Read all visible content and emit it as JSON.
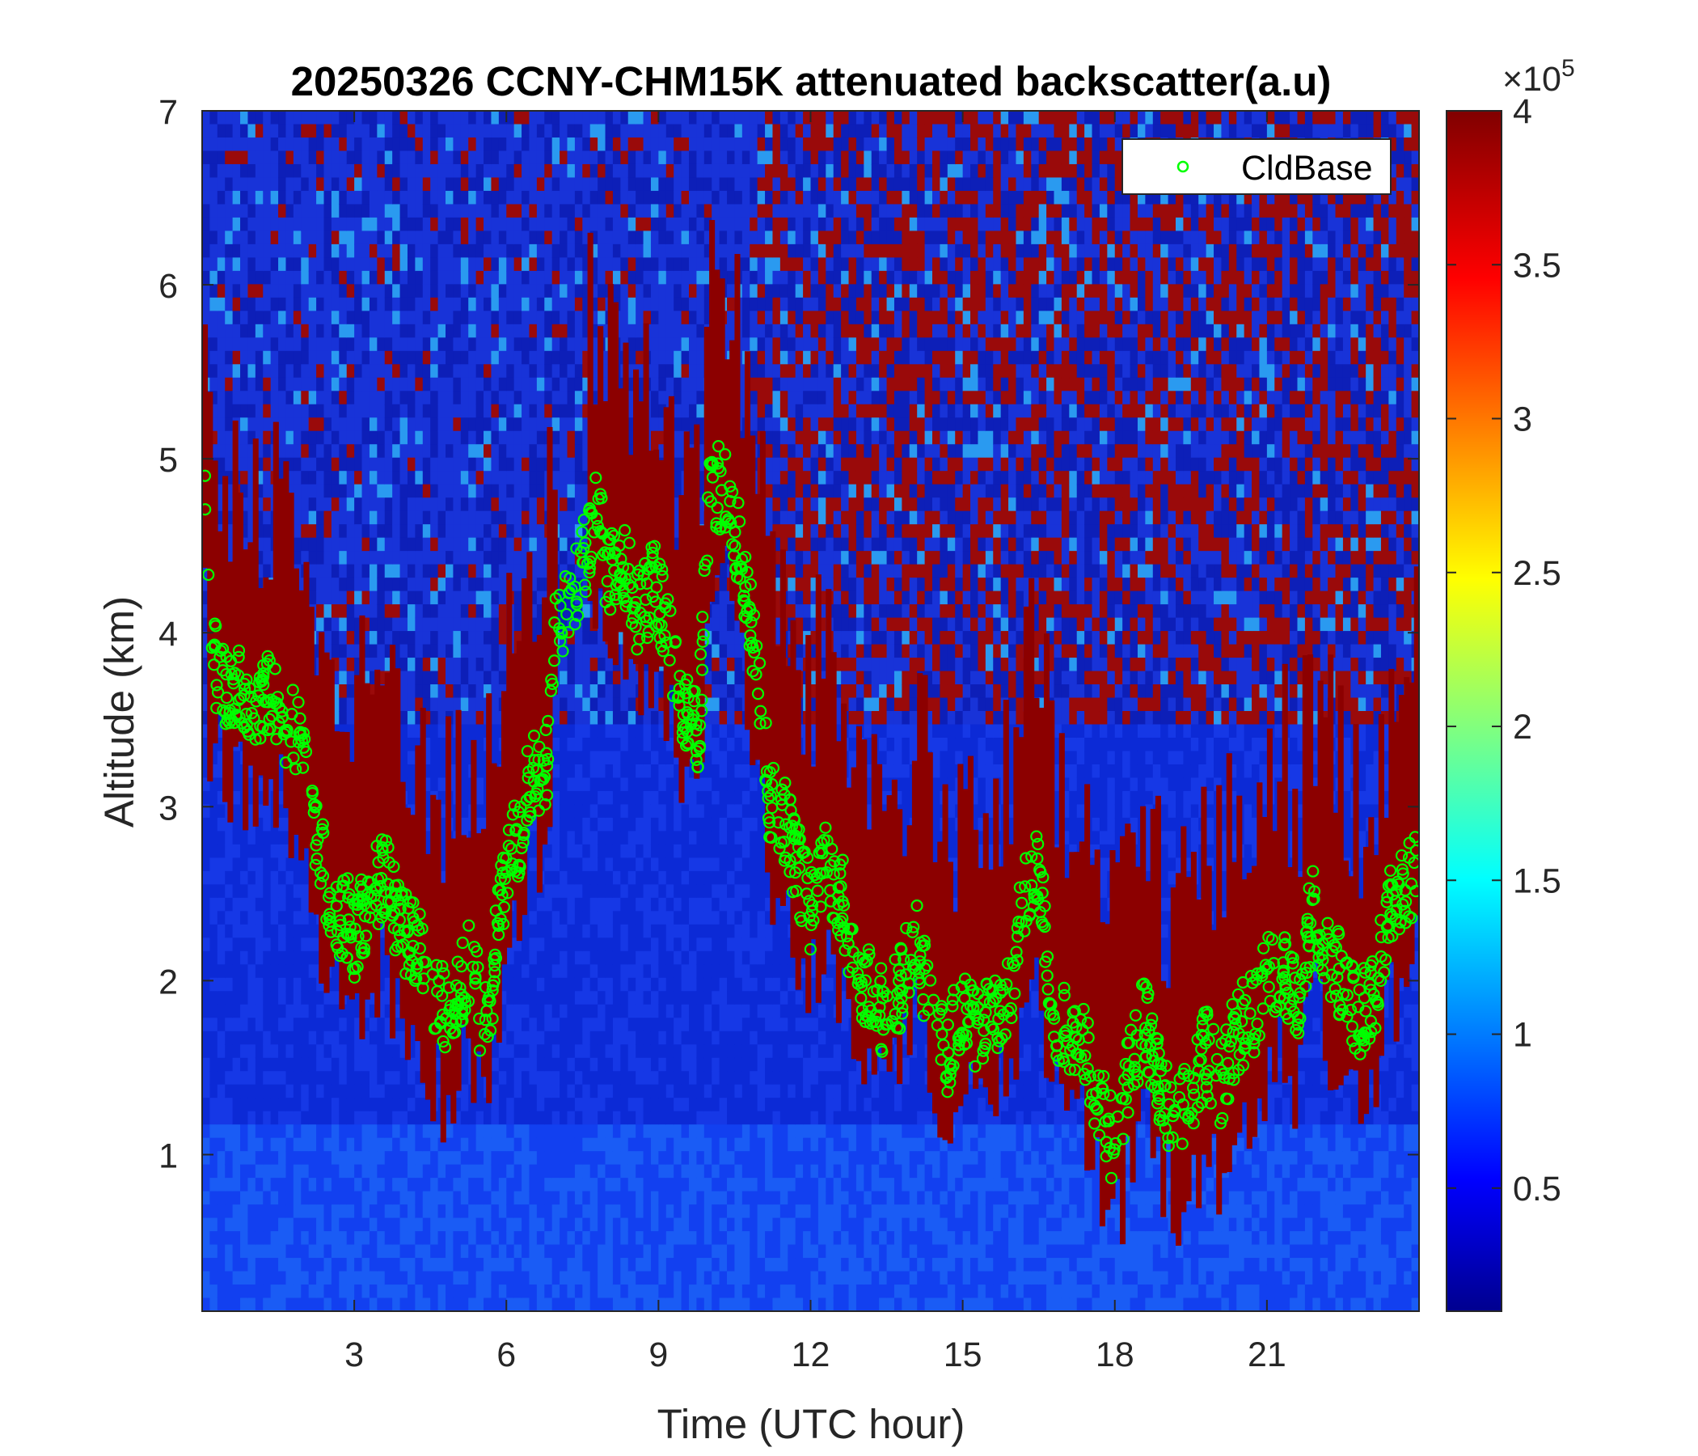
{
  "chart_data": {
    "type": "heatmap",
    "title": "20250326 CCNY-CHM15K attenuated backscatter(a.u)",
    "xlabel": "Time (UTC hour)",
    "ylabel": "Altitude (km)",
    "xlim": [
      0,
      24
    ],
    "ylim": [
      0.1,
      7
    ],
    "xticks": [
      3,
      6,
      9,
      12,
      15,
      18,
      21
    ],
    "yticks": [
      1,
      2,
      3,
      4,
      5,
      6,
      7
    ],
    "colorbar": {
      "colormap": "jet",
      "clim": [
        0.1,
        4
      ],
      "ticks": [
        0.5,
        1,
        1.5,
        2,
        2.5,
        3,
        3.5,
        4
      ],
      "exponent_label": "×10",
      "exponent_power": "5"
    },
    "legend": {
      "position": "top-right",
      "entries": [
        "CldBase"
      ],
      "marker": "circle",
      "color": "#00ff00"
    },
    "series": [
      {
        "name": "CldBase",
        "marker": "circle",
        "color": "#00ff00",
        "x": [
          0.05,
          0.15,
          0.3,
          0.5,
          0.8,
          1.0,
          1.3,
          1.6,
          1.9,
          2.1,
          2.3,
          2.5,
          2.7,
          2.9,
          3.0,
          3.3,
          3.6,
          3.9,
          4.2,
          4.5,
          4.8,
          5.0,
          5.3,
          5.5,
          5.7,
          5.9,
          6.1,
          6.3,
          6.5,
          6.8,
          7.0,
          7.2,
          7.5,
          7.8,
          8.0,
          8.3,
          8.6,
          8.9,
          9.2,
          9.5,
          9.8,
          10.0,
          10.3,
          10.6,
          10.9,
          11.2,
          11.5,
          11.8,
          12.0,
          12.3,
          12.6,
          12.9,
          13.2,
          13.5,
          13.8,
          14.1,
          14.4,
          14.7,
          15.0,
          15.3,
          15.6,
          15.9,
          16.2,
          16.5,
          16.8,
          17.1,
          17.4,
          17.7,
          18.0,
          18.3,
          18.6,
          18.9,
          19.2,
          19.5,
          19.8,
          20.1,
          20.4,
          20.7,
          21.0,
          21.3,
          21.6,
          21.9,
          22.2,
          22.5,
          22.8,
          23.1,
          23.4,
          23.7,
          23.95
        ],
        "y": [
          4.9,
          3.9,
          3.8,
          3.7,
          3.65,
          3.6,
          3.65,
          3.5,
          3.4,
          3.0,
          2.8,
          2.5,
          2.3,
          2.4,
          2.2,
          2.5,
          2.6,
          2.3,
          2.2,
          2.0,
          1.8,
          1.9,
          2.1,
          1.8,
          1.9,
          2.5,
          2.7,
          2.9,
          3.2,
          3.2,
          4.2,
          4.1,
          4.4,
          4.7,
          4.3,
          4.4,
          4.1,
          4.3,
          4.0,
          3.6,
          3.4,
          4.9,
          4.8,
          4.5,
          3.9,
          3.0,
          2.9,
          2.6,
          2.4,
          2.7,
          2.5,
          2.1,
          1.9,
          1.8,
          2.0,
          2.3,
          1.7,
          1.6,
          1.9,
          1.7,
          1.8,
          1.9,
          2.5,
          2.6,
          1.8,
          1.7,
          1.6,
          1.3,
          1.0,
          1.5,
          1.8,
          1.4,
          1.2,
          1.3,
          1.6,
          1.4,
          1.7,
          1.8,
          2.0,
          2.1,
          1.9,
          2.4,
          2.2,
          2.0,
          1.8,
          1.9,
          2.4,
          2.5,
          2.6
        ]
      }
    ]
  }
}
